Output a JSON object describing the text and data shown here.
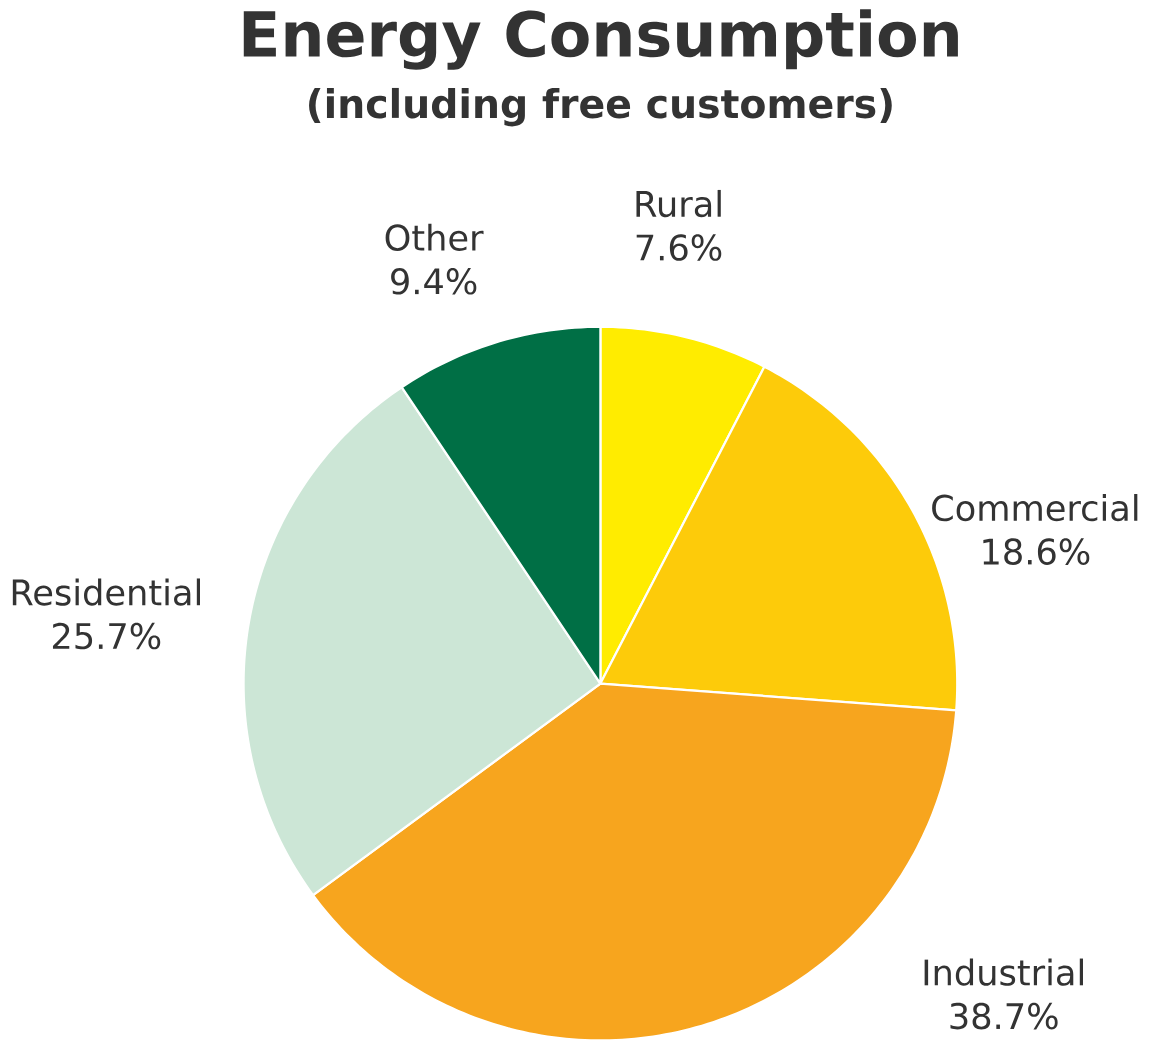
{
  "chart_data": {
    "type": "pie",
    "title": "Energy Consumption",
    "subtitle": "(including free customers)",
    "categories": [
      "Rural",
      "Commercial",
      "Industrial",
      "Residential",
      "Other"
    ],
    "values": [
      7.6,
      18.6,
      38.7,
      25.7,
      9.4
    ],
    "value_labels": [
      "7.6%",
      "18.6%",
      "38.7%",
      "25.7%",
      "9.4%"
    ],
    "colors": [
      "#ffec00",
      "#fdcb0a",
      "#f7a51e",
      "#cce6d6",
      "#006f45"
    ]
  }
}
